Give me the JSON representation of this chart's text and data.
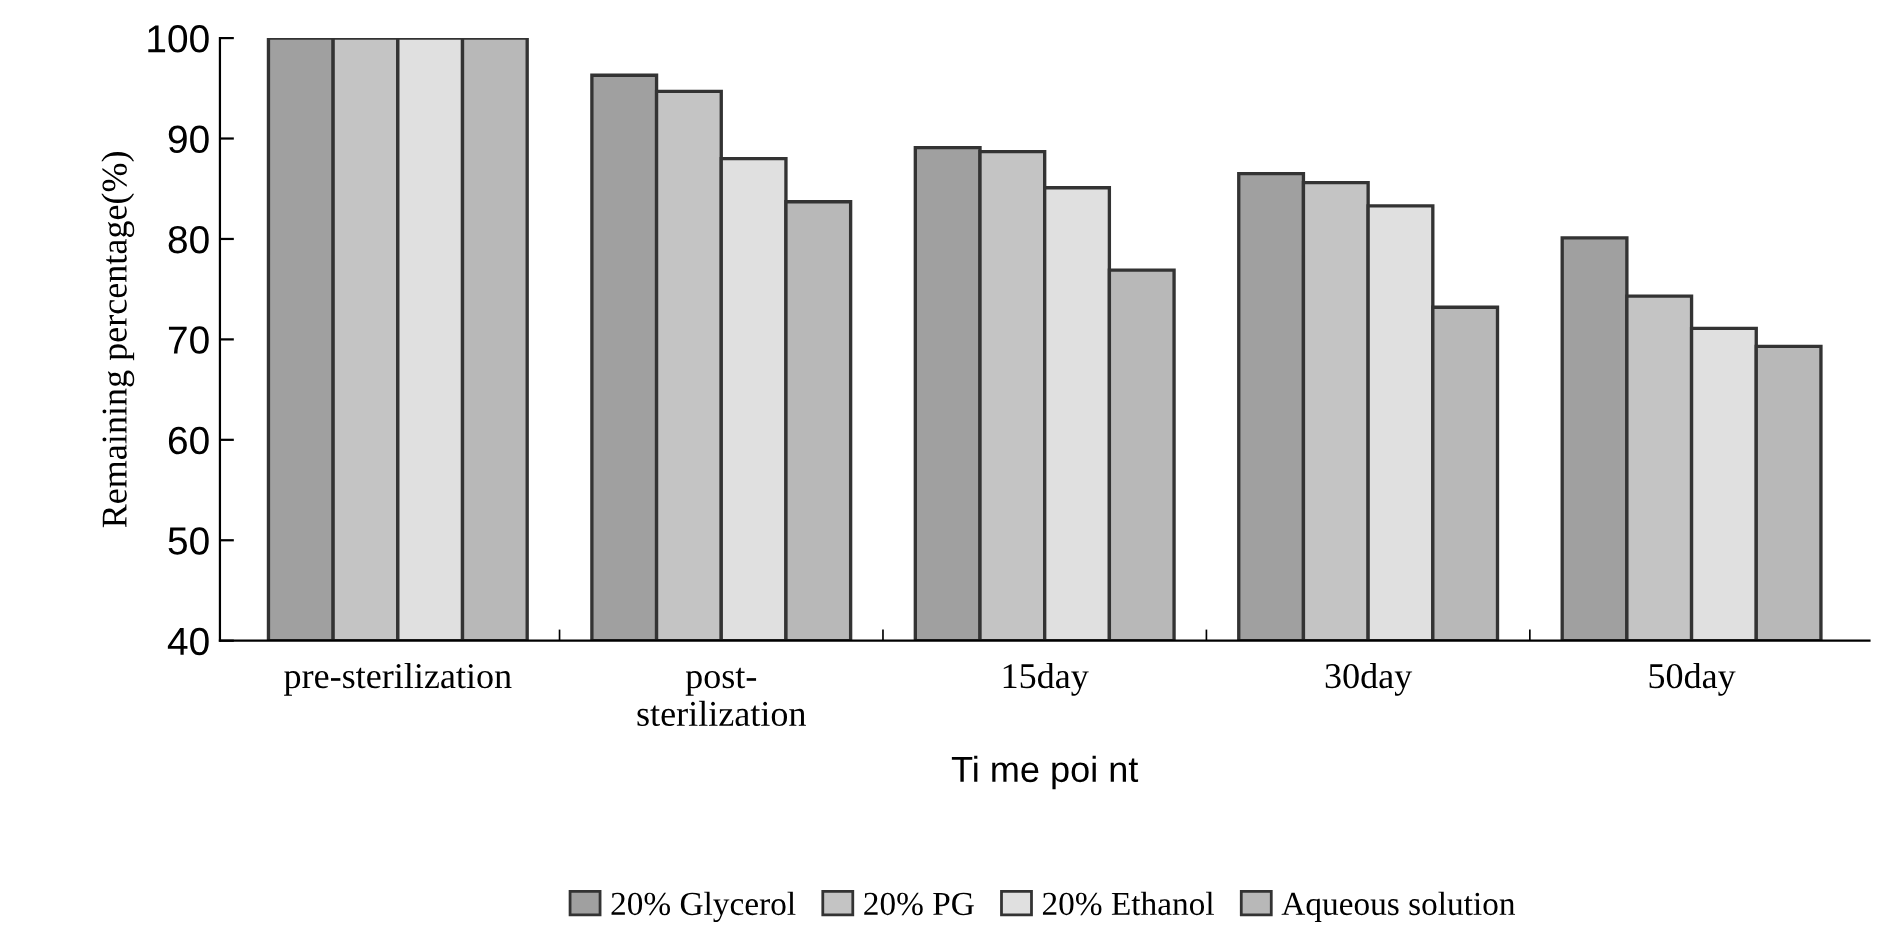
{
  "chart_data": {
    "type": "bar",
    "xlabel": "Ti me poi nt",
    "ylabel": "Remaining percentage(%)",
    "categories": [
      "pre-sterilization",
      "post-\nsterilization",
      "15day",
      "30day",
      "50day"
    ],
    "series": [
      {
        "name": "20% Glycerol",
        "color": "#a0a0a0",
        "values": [
          100,
          96.3,
          89.1,
          86.5,
          80.1
        ]
      },
      {
        "name": "20% PG",
        "color": "#c4c4c4",
        "values": [
          100,
          94.7,
          88.7,
          85.6,
          74.3
        ]
      },
      {
        "name": "20% Ethanol",
        "color": "#e0e0e0",
        "values": [
          100,
          88.0,
          85.1,
          83.3,
          71.1
        ]
      },
      {
        "name": "Aqueous solution",
        "color": "#b8b8b8",
        "values": [
          100,
          83.7,
          76.9,
          73.2,
          69.3
        ]
      }
    ],
    "ylim": [
      40,
      100
    ],
    "yticks": [
      40,
      50,
      60,
      70,
      80,
      90,
      100
    ],
    "grid": false,
    "legend": "bottom"
  }
}
